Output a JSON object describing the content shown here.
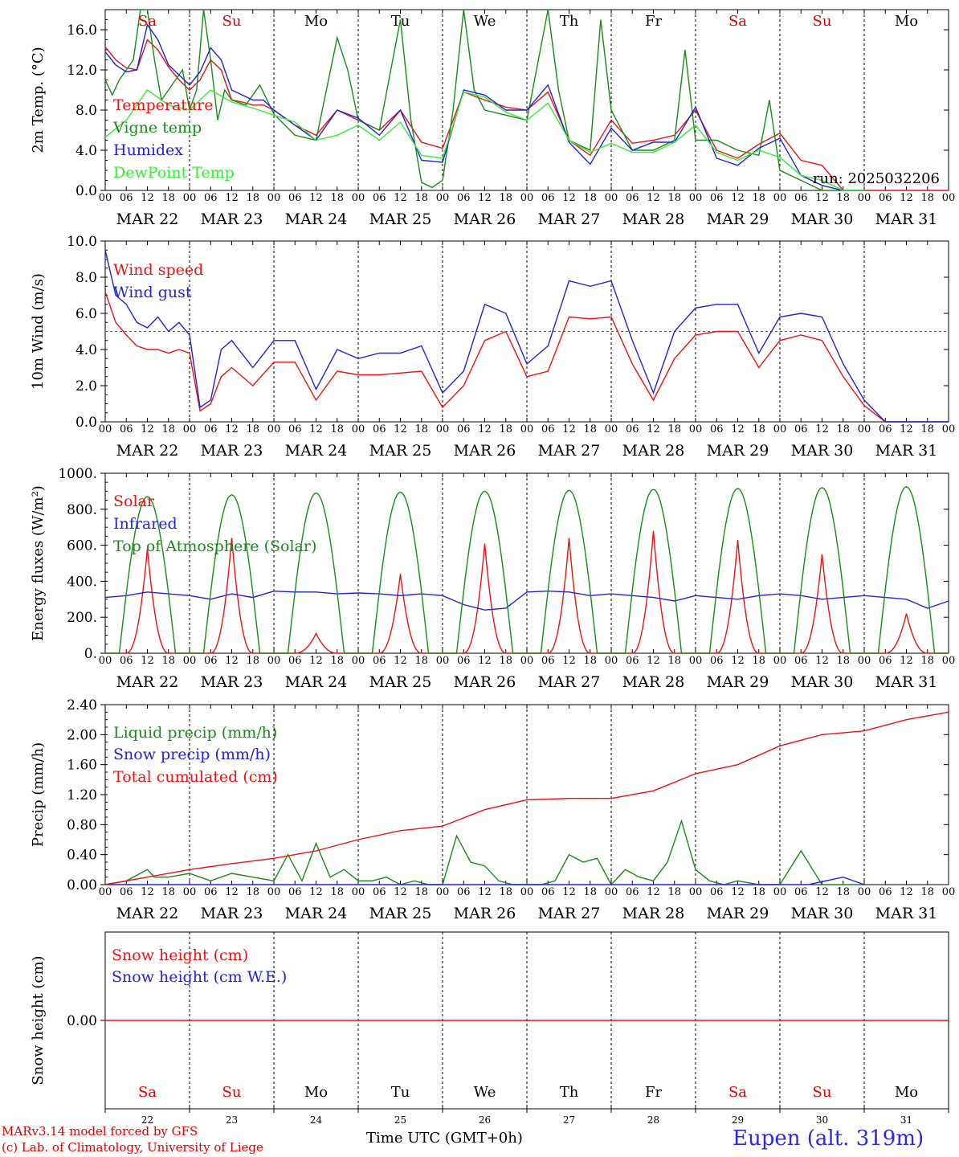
{
  "x_axis": {
    "days": [
      "MAR 22",
      "MAR 23",
      "MAR 24",
      "MAR 25",
      "MAR 26",
      "MAR 27",
      "MAR 28",
      "MAR 29",
      "MAR 30",
      "MAR 31"
    ],
    "hour_ticks": [
      "00",
      "06",
      "12",
      "18"
    ],
    "hour_end": "00",
    "weekdays": [
      "Sa",
      "Su",
      "Mo",
      "Tu",
      "We",
      "Th",
      "Fr",
      "Sa",
      "Su",
      "Mo"
    ],
    "weekday_colors": [
      "#e00000",
      "#e00000",
      "#000000",
      "#000000",
      "#000000",
      "#000000",
      "#000000",
      "#e00000",
      "#e00000",
      "#000000"
    ],
    "day_numbers": [
      "22",
      "23",
      "24",
      "25",
      "26",
      "27",
      "28",
      "29",
      "30",
      "31"
    ]
  },
  "footer": {
    "credit_line1": "MARv3.14 model forced by GFS",
    "credit_line2": "(c) Lab. of Climatology, University of Liege",
    "axis_title": "Time UTC (GMT+0h)",
    "site": "Eupen (alt. 319m)"
  },
  "chart_data": [
    {
      "type": "line",
      "ylabel": "2m Temp. (°C)",
      "ylim": [
        0,
        18
      ],
      "yticks": [
        "0.0",
        "4.0",
        "8.0",
        "12.0",
        "16.0"
      ],
      "ytick_values": [
        0,
        4,
        8,
        12,
        16
      ],
      "annotation": "run: 2025032206",
      "x_unit": "hours since MAR 22 00 UTC",
      "series": [
        {
          "name": "Temperature",
          "color": "#ee1111",
          "x": [
            0,
            3,
            6,
            9,
            12,
            15,
            18,
            21,
            24,
            27,
            30,
            33,
            36,
            39,
            42,
            45,
            48,
            54,
            60,
            66,
            72,
            78,
            84,
            90,
            96,
            102,
            108,
            114,
            120,
            126,
            132,
            138,
            144,
            150,
            156,
            162,
            168,
            174,
            180,
            186,
            192,
            198,
            204,
            210,
            216,
            222,
            228,
            234,
            240
          ],
          "y": [
            14.3,
            13.0,
            12.2,
            12.0,
            15.0,
            14.0,
            12.3,
            11.0,
            10.0,
            11.0,
            13.0,
            12.0,
            9.0,
            8.8,
            8.5,
            8.5,
            8.0,
            6.5,
            5.5,
            8.0,
            7.0,
            6.0,
            8.0,
            4.8,
            4.2,
            9.8,
            9.0,
            8.3,
            8.0,
            9.8,
            5.0,
            3.5,
            7.0,
            4.7,
            5.0,
            5.5,
            8.0,
            4.0,
            3.2,
            4.6,
            5.7,
            3.0,
            2.5,
            0,
            0,
            0,
            0,
            0,
            0
          ]
        },
        {
          "name": "Vigne temp",
          "color": "#1a8a1a",
          "x": [
            0,
            2,
            4,
            6,
            8,
            10,
            12,
            14,
            16,
            18,
            20,
            22,
            24,
            26,
            28,
            30,
            32,
            34,
            36,
            40,
            44,
            48,
            54,
            60,
            66,
            69,
            72,
            78,
            84,
            87,
            90,
            93,
            96,
            99,
            102,
            105,
            108,
            114,
            120,
            126,
            129,
            132,
            138,
            141,
            144,
            150,
            156,
            162,
            165,
            168,
            174,
            180,
            186,
            189,
            192,
            198,
            204,
            210,
            216
          ],
          "y": [
            11,
            9.5,
            11,
            12,
            13,
            18,
            19,
            13,
            9,
            10,
            11,
            12,
            8,
            10,
            19,
            13,
            7,
            10,
            9,
            8.5,
            10.5,
            7.6,
            5.5,
            5,
            15.2,
            12,
            7,
            6,
            17,
            7,
            0.8,
            0.3,
            1,
            8,
            20,
            10,
            8,
            7.5,
            7,
            20,
            10,
            5,
            4,
            17,
            8,
            4,
            4,
            5,
            14,
            5,
            5,
            4,
            3.5,
            9,
            2,
            1,
            0,
            0,
            0
          ]
        },
        {
          "name": "Humidex",
          "color": "#2222dd",
          "x": [
            0,
            3,
            6,
            9,
            12,
            15,
            18,
            21,
            24,
            27,
            30,
            33,
            36,
            39,
            42,
            45,
            48,
            54,
            60,
            66,
            72,
            78,
            84,
            90,
            96,
            102,
            108,
            114,
            120,
            126,
            132,
            138,
            144,
            150,
            156,
            162,
            168,
            174,
            180,
            186,
            192,
            198,
            204,
            210,
            216
          ],
          "y": [
            13.8,
            12.5,
            11.8,
            12.0,
            16.5,
            15.0,
            12.5,
            11.5,
            10.5,
            11.8,
            14.2,
            13.0,
            10.0,
            9.5,
            9.0,
            9.0,
            8.0,
            6.5,
            5.0,
            8.0,
            7.2,
            5.5,
            8.0,
            3.0,
            2.8,
            10.0,
            9.5,
            8.0,
            8.0,
            10.5,
            4.8,
            2.6,
            6.2,
            4.0,
            4.8,
            4.8,
            8.3,
            3.2,
            2.5,
            4.2,
            5.2,
            1.5,
            0.5,
            0,
            0
          ]
        },
        {
          "name": "DewPoint Temp",
          "color": "#33ee33",
          "x": [
            0,
            6,
            12,
            18,
            24,
            30,
            36,
            42,
            48,
            54,
            60,
            66,
            72,
            78,
            84,
            90,
            96,
            102,
            108,
            114,
            120,
            126,
            132,
            138,
            144,
            150,
            156,
            162,
            168,
            174,
            180,
            186,
            192,
            198,
            204,
            210,
            216
          ],
          "y": [
            5.3,
            7.0,
            10.0,
            8.5,
            8.0,
            10.0,
            8.8,
            8.2,
            7.5,
            6.8,
            5.0,
            5.5,
            6.5,
            5.0,
            6.8,
            3.5,
            3.2,
            9.8,
            9.3,
            7.8,
            7.0,
            8.7,
            5.0,
            3.8,
            4.7,
            3.8,
            3.8,
            4.8,
            6.5,
            3.8,
            3.0,
            4.0,
            3.3,
            1.5,
            1.0,
            0,
            0
          ]
        }
      ]
    },
    {
      "type": "line",
      "ylabel": "10m Wind (m/s)",
      "ylim": [
        0,
        10
      ],
      "yticks": [
        "0.0",
        "2.0",
        "4.0",
        "6.0",
        "8.0",
        "10.0"
      ],
      "ytick_values": [
        0,
        2,
        4,
        6,
        8,
        10
      ],
      "reference_line": 5,
      "x_unit": "hours since MAR 22 00 UTC",
      "series": [
        {
          "name": "Wind speed",
          "color": "#ee1111",
          "x": [
            0,
            3,
            6,
            9,
            12,
            15,
            18,
            21,
            24,
            27,
            30,
            33,
            36,
            42,
            48,
            54,
            60,
            66,
            72,
            78,
            84,
            90,
            96,
            102,
            108,
            114,
            120,
            126,
            132,
            138,
            144,
            150,
            156,
            162,
            168,
            174,
            180,
            186,
            192,
            198,
            204,
            210,
            216,
            222,
            228,
            234,
            240
          ],
          "y": [
            7.2,
            5.5,
            4.8,
            4.2,
            4.0,
            4.0,
            3.8,
            4.0,
            3.8,
            0.6,
            1.0,
            2.5,
            3.0,
            2.0,
            3.3,
            3.3,
            1.2,
            2.8,
            2.6,
            2.6,
            2.7,
            2.8,
            0.8,
            2.0,
            4.5,
            5.0,
            2.5,
            2.8,
            5.8,
            5.7,
            5.8,
            3.2,
            1.2,
            3.5,
            4.8,
            5.0,
            5.0,
            3.0,
            4.5,
            4.8,
            4.5,
            2.5,
            0.9,
            0,
            0,
            0,
            0
          ]
        },
        {
          "name": "Wind gust",
          "color": "#2222dd",
          "x": [
            0,
            3,
            6,
            9,
            12,
            15,
            18,
            21,
            24,
            27,
            30,
            33,
            36,
            42,
            48,
            54,
            60,
            66,
            72,
            78,
            84,
            90,
            96,
            102,
            108,
            114,
            120,
            126,
            132,
            138,
            144,
            150,
            156,
            162,
            168,
            174,
            180,
            186,
            192,
            198,
            204,
            210,
            216,
            222,
            228,
            234,
            240
          ],
          "y": [
            9.5,
            7.0,
            6.5,
            5.5,
            5.2,
            5.8,
            5.0,
            5.5,
            4.8,
            0.8,
            1.2,
            4.0,
            4.5,
            3.0,
            4.5,
            4.5,
            1.8,
            4.0,
            3.5,
            3.8,
            3.8,
            4.2,
            1.6,
            2.8,
            6.5,
            6.0,
            3.2,
            4.2,
            7.8,
            7.5,
            7.8,
            4.5,
            1.6,
            5.0,
            6.3,
            6.5,
            6.5,
            3.8,
            5.8,
            6.0,
            5.8,
            3.2,
            1.2,
            0,
            0,
            0,
            0
          ]
        }
      ]
    },
    {
      "type": "line",
      "ylabel": "Energy fluxes (W/m²)",
      "ylim": [
        0,
        1000
      ],
      "yticks": [
        "0.",
        "200.",
        "400.",
        "600.",
        "800.",
        "1000."
      ],
      "ytick_values": [
        0,
        200,
        400,
        600,
        800,
        1000
      ],
      "x_unit": "hours since MAR 22 00 UTC",
      "series": [
        {
          "name": "Solar",
          "color": "#ee1111",
          "peaks": [
            [
              12,
              580
            ],
            [
              36,
              640
            ],
            [
              60,
              110
            ],
            [
              84,
              440
            ],
            [
              108,
              610
            ],
            [
              132,
              640
            ],
            [
              156,
              680
            ],
            [
              180,
              630
            ],
            [
              204,
              550
            ],
            [
              228,
              220
            ]
          ]
        },
        {
          "name": "Infrared",
          "color": "#2222dd",
          "x": [
            0,
            6,
            12,
            18,
            24,
            30,
            36,
            42,
            48,
            54,
            60,
            66,
            72,
            78,
            84,
            90,
            96,
            102,
            108,
            114,
            120,
            126,
            132,
            138,
            144,
            150,
            156,
            162,
            168,
            174,
            180,
            186,
            192,
            198,
            204,
            210,
            216,
            222,
            228,
            234,
            240
          ],
          "y": [
            310,
            320,
            340,
            330,
            320,
            300,
            330,
            310,
            345,
            340,
            340,
            330,
            335,
            330,
            320,
            330,
            320,
            270,
            240,
            250,
            340,
            345,
            340,
            320,
            330,
            320,
            310,
            290,
            320,
            310,
            300,
            320,
            330,
            320,
            300,
            310,
            320,
            310,
            300,
            250,
            290
          ]
        },
        {
          "name": "Top of Atmosphere (Solar)",
          "color": "#1a8a1a",
          "peaks": [
            [
              12,
              870
            ],
            [
              36,
              880
            ],
            [
              60,
              890
            ],
            [
              84,
              895
            ],
            [
              108,
              900
            ],
            [
              132,
              905
            ],
            [
              156,
              910
            ],
            [
              180,
              915
            ],
            [
              204,
              920
            ],
            [
              228,
              925
            ]
          ]
        }
      ]
    },
    {
      "type": "line",
      "ylabel": "Precip (mm/h)",
      "ylim": [
        0,
        2.4
      ],
      "yticks": [
        "0.00",
        "0.40",
        "0.80",
        "1.20",
        "1.60",
        "2.00",
        "2.40"
      ],
      "ytick_values": [
        0,
        0.4,
        0.8,
        1.2,
        1.6,
        2.0,
        2.4
      ],
      "x_unit": "hours since MAR 22 00 UTC",
      "series": [
        {
          "name": "Liquid precip (mm/h)",
          "color": "#1a8a1a",
          "x": [
            0,
            6,
            12,
            14,
            18,
            24,
            30,
            36,
            42,
            48,
            52,
            56,
            60,
            64,
            68,
            72,
            76,
            80,
            84,
            88,
            92,
            96,
            100,
            104,
            108,
            112,
            116,
            120,
            124,
            128,
            132,
            136,
            140,
            144,
            148,
            152,
            156,
            160,
            164,
            168,
            172,
            176,
            180,
            186,
            192,
            198,
            204,
            208,
            212,
            216
          ],
          "y": [
            0,
            0.05,
            0.2,
            0.1,
            0.1,
            0.15,
            0.05,
            0.15,
            0.1,
            0.05,
            0.4,
            0.05,
            0.55,
            0.1,
            0.2,
            0.05,
            0.05,
            0.1,
            0.0,
            0.05,
            0.0,
            0.0,
            0.65,
            0.3,
            0.25,
            0.05,
            0.0,
            0.0,
            0.0,
            0.05,
            0.4,
            0.3,
            0.35,
            0.0,
            0.2,
            0.1,
            0.05,
            0.3,
            0.85,
            0.2,
            0.05,
            0.0,
            0.05,
            0.0,
            0.0,
            0.45,
            0.0,
            0.0,
            0.0,
            0.0
          ]
        },
        {
          "name": "Snow precip (mm/h)",
          "color": "#2222dd",
          "x": [
            0,
            200,
            210,
            216
          ],
          "y": [
            0,
            0,
            0.1,
            0
          ]
        },
        {
          "name": "Total cumulated (cm)",
          "color": "#ee1111",
          "x": [
            0,
            12,
            24,
            36,
            48,
            60,
            72,
            84,
            96,
            108,
            120,
            132,
            144,
            156,
            168,
            180,
            192,
            204,
            216,
            228,
            240
          ],
          "y": [
            0,
            0.1,
            0.2,
            0.28,
            0.35,
            0.45,
            0.6,
            0.72,
            0.78,
            1.0,
            1.13,
            1.15,
            1.15,
            1.25,
            1.48,
            1.6,
            1.85,
            2.0,
            2.05,
            2.2,
            2.3
          ]
        }
      ]
    },
    {
      "type": "line",
      "ylabel": "Snow height (cm)",
      "yticks": [
        "0.00"
      ],
      "ytick_values": [
        0
      ],
      "x_unit": "hours since MAR 22 00 UTC",
      "series": [
        {
          "name": "Snow height (cm)",
          "color": "#ee1111",
          "x": [
            0,
            240
          ],
          "y": [
            0,
            0
          ]
        },
        {
          "name": "Snow height (cm W.E.)",
          "color": "#2222dd",
          "x": [],
          "y": []
        }
      ]
    }
  ]
}
